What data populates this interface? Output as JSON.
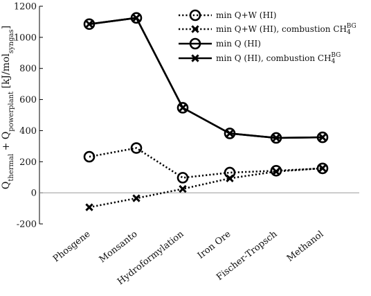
{
  "chart_data": {
    "type": "line",
    "categories": [
      "Phosgene",
      "Monsanto",
      "Hydroformylation",
      "Iron Ore",
      "Fischer-Tropsch",
      "Methanol"
    ],
    "ylim": [
      -200,
      1200
    ],
    "yticks": [
      -200,
      0,
      200,
      400,
      600,
      800,
      1000,
      1200
    ],
    "ytick_labels": [
      "-200",
      "0",
      "200",
      "400",
      "600",
      "800",
      "1000",
      "1200"
    ],
    "ylabel": {
      "main1": "Q",
      "sub1": "thermal",
      "main2": " + Q",
      "sub2": "powerplant",
      "main3": " [kJ/mol",
      "sub3": "syngas",
      "main4": "]"
    },
    "zero_line": true,
    "legend_position": "top-right",
    "series": [
      {
        "key": "qw",
        "name": "min Q+W (HI)",
        "name_sub": "",
        "name_sup": "",
        "values": [
          232,
          288,
          97,
          130,
          142,
          157
        ],
        "line": "dotted",
        "marker": "circle",
        "color": "#000000"
      },
      {
        "key": "qw_comb",
        "name": "min Q+W (HI), combustion CH",
        "name_sub": "4",
        "name_sup": "BG",
        "values": [
          -93,
          -35,
          25,
          93,
          137,
          158
        ],
        "line": "dotted",
        "marker": "x",
        "color": "#000000"
      },
      {
        "key": "q",
        "name": "min Q (HI)",
        "name_sub": "",
        "name_sup": "",
        "values": [
          1085,
          1125,
          547,
          382,
          353,
          357
        ],
        "line": "solid",
        "marker": "circle",
        "color": "#000000"
      },
      {
        "key": "q_comb",
        "name": "min Q (HI), combustion CH",
        "name_sub": "4",
        "name_sup": "BG",
        "values": [
          1085,
          1125,
          547,
          382,
          353,
          357
        ],
        "line": "solid",
        "marker": "x",
        "color": "#000000"
      }
    ]
  }
}
